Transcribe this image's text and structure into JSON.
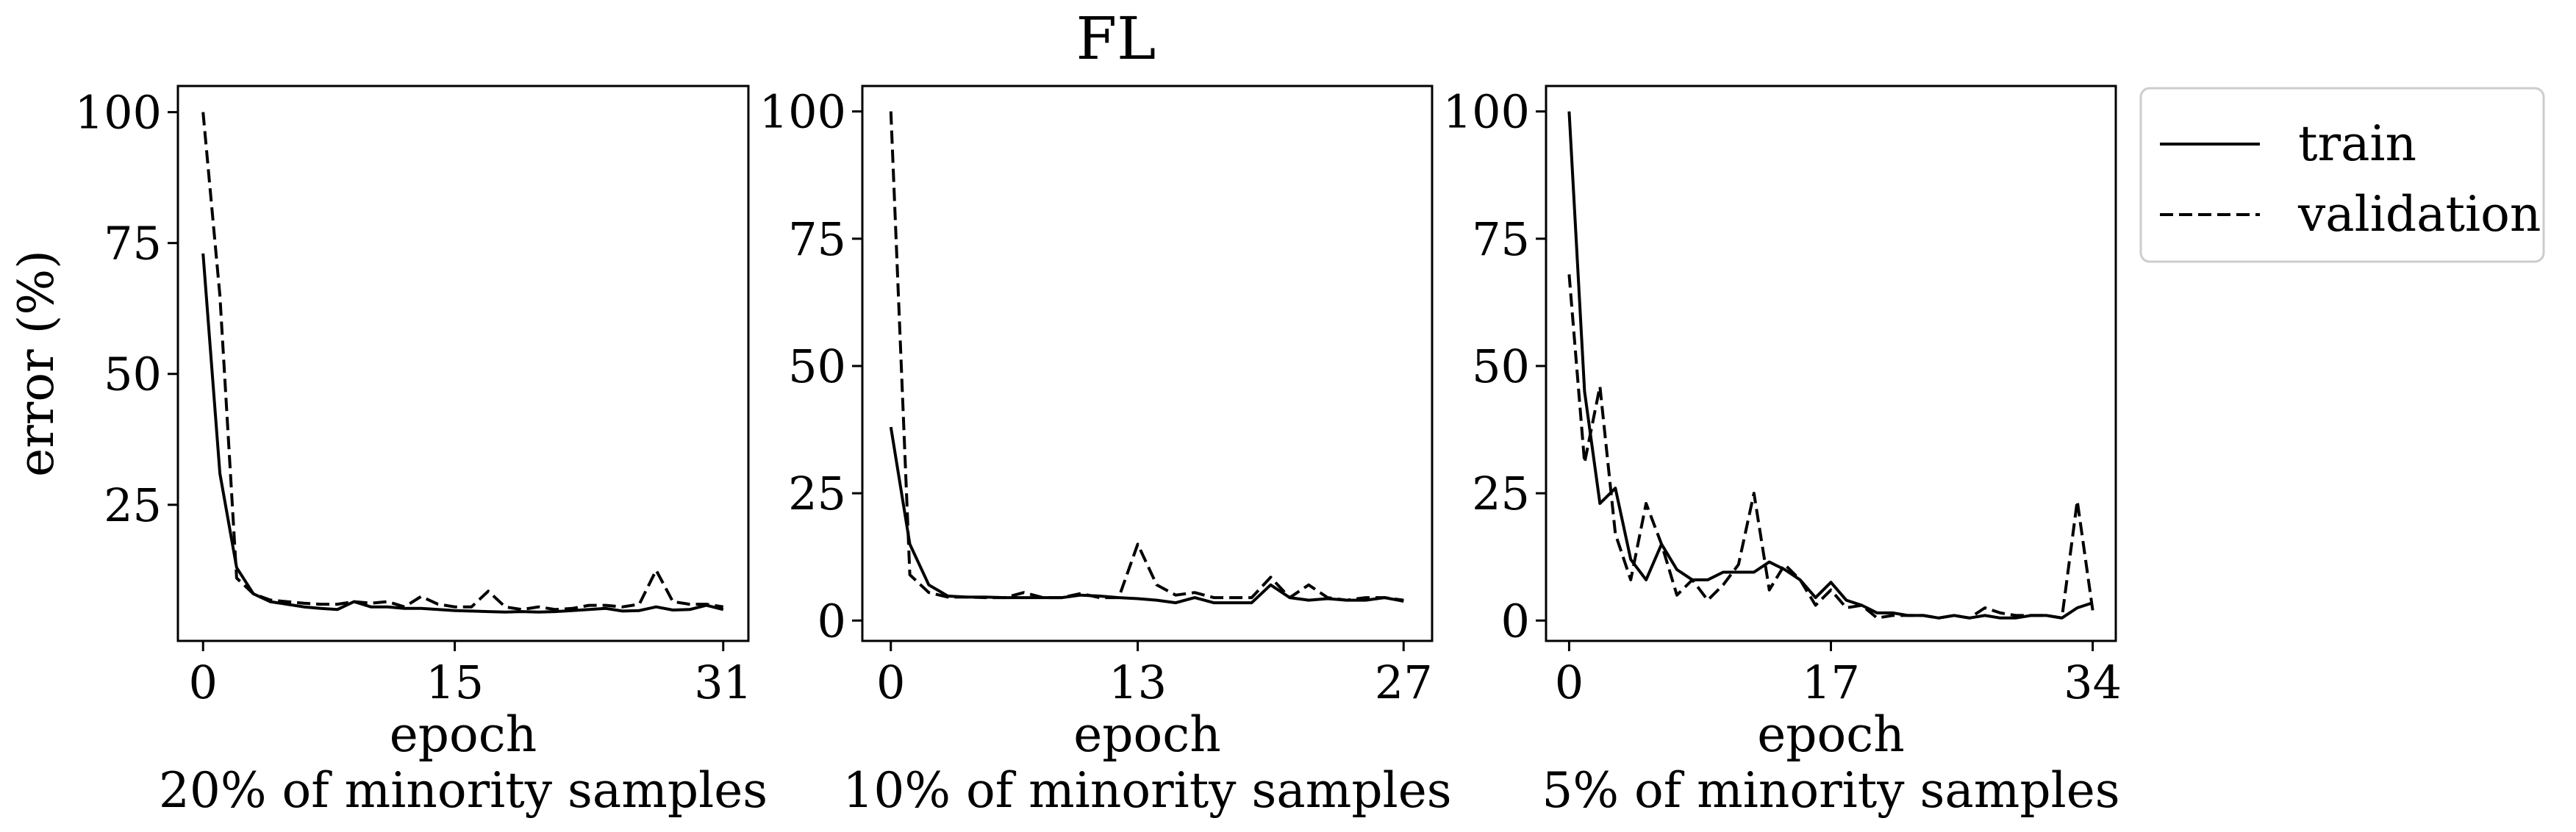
{
  "figure": {
    "suptitle": "FL"
  },
  "legend": {
    "placement": "upper-right, outside",
    "entries": [
      {
        "name": "train",
        "style": "solid"
      },
      {
        "name": "validation",
        "style": "dashed"
      }
    ]
  },
  "chart_data": [
    {
      "type": "line",
      "xlabel": "epoch",
      "subtitle": "20% of minority samples",
      "ylabel": "error (%)",
      "xticks": [
        0,
        15,
        31
      ],
      "yticks": [
        25,
        50,
        75,
        100
      ],
      "xlim": [
        -1.5,
        32.5
      ],
      "ylim": [
        -1,
        105
      ],
      "grid": false,
      "series": [
        {
          "name": "train",
          "style": "solid",
          "x": [
            0,
            1,
            2,
            3,
            4,
            5,
            6,
            7,
            8,
            9,
            10,
            11,
            12,
            13,
            14,
            15,
            16,
            17,
            18,
            19,
            20,
            21,
            22,
            23,
            24,
            25,
            26,
            27,
            28,
            29,
            30,
            31
          ],
          "values": [
            73,
            31,
            13,
            8,
            6.5,
            6,
            5.5,
            5.2,
            5,
            6.5,
            5.5,
            5.5,
            5.2,
            5.2,
            5,
            4.8,
            4.7,
            4.6,
            4.5,
            4.6,
            4.5,
            4.6,
            4.8,
            5,
            5.2,
            4.7,
            4.8,
            5.5,
            4.9,
            5,
            5.8,
            5
          ]
        },
        {
          "name": "validation",
          "style": "dashed",
          "x": [
            0,
            1,
            2,
            3,
            4,
            5,
            6,
            7,
            8,
            9,
            10,
            11,
            12,
            13,
            14,
            15,
            16,
            17,
            18,
            19,
            20,
            21,
            22,
            23,
            24,
            25,
            26,
            27,
            28,
            29,
            30,
            31
          ],
          "values": [
            100,
            65,
            11,
            8,
            6.8,
            6.5,
            6.2,
            6,
            6,
            6.5,
            6.2,
            6.5,
            5.5,
            7.5,
            6,
            5.5,
            5.5,
            8.5,
            5.5,
            5,
            5.5,
            5,
            5.2,
            5.8,
            5.8,
            5.5,
            6,
            12.5,
            6.5,
            6,
            6,
            5.5
          ]
        }
      ]
    },
    {
      "type": "line",
      "xlabel": "epoch",
      "subtitle": "10% of minority samples",
      "ylabel": "",
      "xticks": [
        0,
        13,
        27
      ],
      "yticks": [
        0,
        25,
        50,
        75,
        100
      ],
      "xlim": [
        -1.5,
        28.5
      ],
      "ylim": [
        -4,
        105
      ],
      "grid": false,
      "series": [
        {
          "name": "train",
          "style": "solid",
          "x": [
            0,
            1,
            2,
            3,
            4,
            5,
            6,
            7,
            8,
            9,
            10,
            11,
            12,
            13,
            14,
            15,
            16,
            17,
            18,
            19,
            20,
            21,
            22,
            23,
            24,
            25,
            26,
            27
          ],
          "values": [
            38,
            15,
            7,
            4.8,
            4.6,
            4.6,
            4.5,
            4.5,
            4.5,
            4.5,
            5,
            4.8,
            4.5,
            4.3,
            4,
            3.5,
            4.5,
            3.5,
            3.5,
            3.5,
            7,
            4.5,
            4,
            4.3,
            4,
            4,
            4.5,
            3.8
          ]
        },
        {
          "name": "validation",
          "style": "dashed",
          "x": [
            0,
            1,
            2,
            3,
            4,
            5,
            6,
            7,
            8,
            9,
            10,
            11,
            12,
            13,
            14,
            15,
            16,
            17,
            18,
            19,
            20,
            21,
            22,
            23,
            24,
            25,
            26,
            27
          ],
          "values": [
            100,
            9,
            5.5,
            4.6,
            4.6,
            4.5,
            4.5,
            5.5,
            4.5,
            4.5,
            5.3,
            4.5,
            4.5,
            15,
            7,
            5,
            5.5,
            4.5,
            4.5,
            4.5,
            8.5,
            4.5,
            7,
            4.5,
            4,
            4.5,
            4.5,
            4
          ]
        }
      ]
    },
    {
      "type": "line",
      "xlabel": "epoch",
      "subtitle": "5% of minority samples",
      "ylabel": "",
      "xticks": [
        0,
        17,
        34
      ],
      "yticks": [
        0,
        25,
        50,
        75,
        100
      ],
      "xlim": [
        -1.5,
        35.5
      ],
      "ylim": [
        -4,
        105
      ],
      "grid": false,
      "series": [
        {
          "name": "train",
          "style": "solid",
          "x": [
            0,
            1,
            2,
            3,
            4,
            5,
            6,
            7,
            8,
            9,
            10,
            11,
            12,
            13,
            14,
            15,
            16,
            17,
            18,
            19,
            20,
            21,
            22,
            23,
            24,
            25,
            26,
            27,
            28,
            29,
            30,
            31,
            32,
            33,
            34
          ],
          "values": [
            100,
            45,
            23,
            26,
            12,
            8,
            15,
            10,
            8,
            8,
            9.5,
            9.5,
            9.5,
            11.5,
            10,
            8,
            4.5,
            7.5,
            4,
            3,
            1.5,
            1.5,
            1,
            1,
            0.5,
            1,
            0.5,
            1,
            0.5,
            0.5,
            1,
            1,
            0.5,
            2.5,
            3.5
          ]
        },
        {
          "name": "validation",
          "style": "dashed",
          "x": [
            0,
            1,
            2,
            3,
            4,
            5,
            6,
            7,
            8,
            9,
            10,
            11,
            12,
            13,
            14,
            15,
            16,
            17,
            18,
            19,
            20,
            21,
            22,
            23,
            24,
            25,
            26,
            27,
            28,
            29,
            30,
            31,
            32,
            33,
            34
          ],
          "values": [
            68,
            31,
            46,
            17,
            8,
            23,
            15,
            5,
            8,
            4,
            7,
            11,
            25,
            6,
            11,
            8,
            3,
            6,
            2.5,
            3,
            0.5,
            1,
            1,
            1,
            0.5,
            1,
            0.5,
            2.5,
            1.5,
            1,
            1,
            1,
            0.5,
            23.5,
            2
          ]
        }
      ]
    }
  ]
}
